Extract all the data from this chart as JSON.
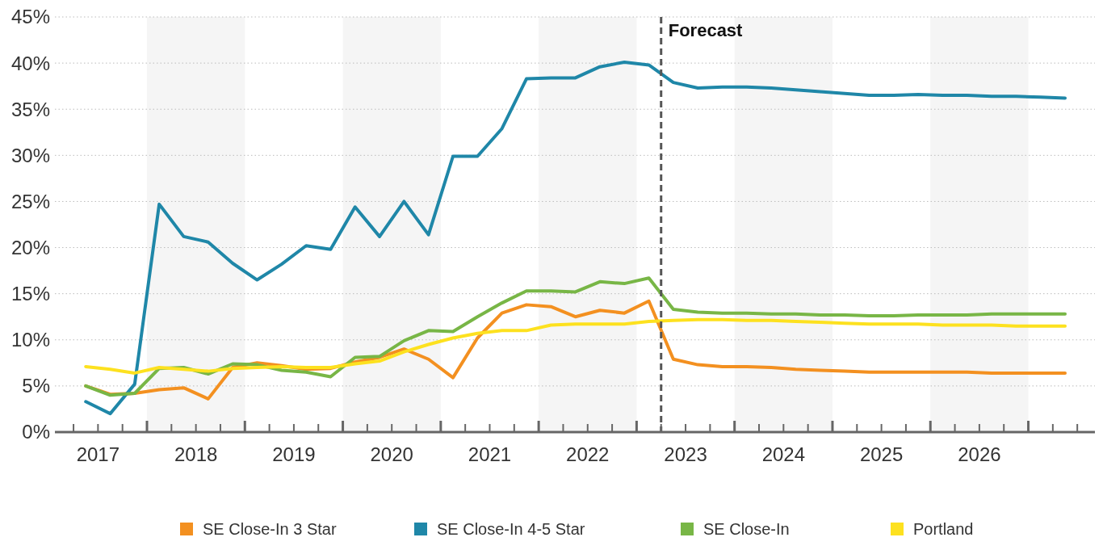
{
  "chart_data": {
    "type": "line",
    "x": [
      2017.375,
      2017.625,
      2017.875,
      2018.125,
      2018.375,
      2018.625,
      2018.875,
      2019.125,
      2019.375,
      2019.625,
      2019.875,
      2020.125,
      2020.375,
      2020.625,
      2020.875,
      2021.125,
      2021.375,
      2021.625,
      2021.875,
      2022.125,
      2022.375,
      2022.625,
      2022.875,
      2023.125,
      2023.375,
      2023.625,
      2023.875,
      2024.125,
      2024.375,
      2024.625,
      2024.875,
      2025.125,
      2025.375,
      2025.625,
      2025.875,
      2026.125,
      2026.375,
      2026.625,
      2026.875,
      2027.125,
      2027.375
    ],
    "series": [
      {
        "name": "SE Close-In 3 Star",
        "color": "#f39020",
        "values": [
          5.0,
          4.1,
          4.2,
          4.6,
          4.8,
          3.6,
          7.0,
          7.5,
          7.2,
          6.8,
          6.9,
          7.6,
          8.1,
          9.0,
          7.9,
          5.9,
          10.2,
          12.9,
          13.8,
          13.6,
          12.5,
          13.2,
          12.9,
          14.2,
          7.9,
          7.3,
          7.1,
          7.1,
          7.0,
          6.8,
          6.7,
          6.6,
          6.5,
          6.5,
          6.5,
          6.5,
          6.5,
          6.4,
          6.4,
          6.4,
          6.4
        ]
      },
      {
        "name": "SE Close-In 4-5 Star",
        "color": "#1f87a8",
        "values": [
          3.3,
          2.0,
          5.2,
          24.7,
          21.2,
          20.6,
          18.3,
          16.5,
          18.2,
          20.2,
          19.8,
          24.4,
          21.2,
          25.0,
          21.4,
          29.9,
          29.9,
          32.9,
          38.3,
          38.4,
          38.4,
          39.6,
          40.1,
          39.8,
          37.9,
          37.3,
          37.4,
          37.4,
          37.3,
          37.1,
          36.9,
          36.7,
          36.5,
          36.5,
          36.6,
          36.5,
          36.5,
          36.4,
          36.4,
          36.3,
          36.2
        ]
      },
      {
        "name": "SE Close-In",
        "color": "#78b646",
        "values": [
          5.0,
          4.0,
          4.2,
          6.9,
          7.0,
          6.3,
          7.4,
          7.3,
          6.7,
          6.5,
          6.0,
          8.1,
          8.2,
          9.9,
          11.0,
          10.9,
          12.5,
          14.0,
          15.3,
          15.3,
          15.2,
          16.3,
          16.1,
          16.7,
          13.3,
          13.0,
          12.9,
          12.9,
          12.8,
          12.8,
          12.7,
          12.7,
          12.6,
          12.6,
          12.7,
          12.7,
          12.7,
          12.8,
          12.8,
          12.8,
          12.8
        ]
      },
      {
        "name": "Portland",
        "color": "#fde11f",
        "values": [
          7.1,
          6.8,
          6.4,
          7.0,
          6.8,
          6.6,
          6.9,
          7.0,
          7.1,
          7.0,
          7.0,
          7.4,
          7.7,
          8.7,
          9.5,
          10.2,
          10.7,
          11.0,
          11.0,
          11.6,
          11.7,
          11.7,
          11.7,
          12.0,
          12.1,
          12.2,
          12.2,
          12.1,
          12.1,
          12.0,
          11.9,
          11.8,
          11.7,
          11.7,
          11.7,
          11.6,
          11.6,
          11.6,
          11.5,
          11.5,
          11.5
        ]
      }
    ],
    "xlim": [
      2017.06,
      2027.68
    ],
    "xticks": [
      {
        "value": 2017.25,
        "label": null
      },
      {
        "value": 2017.5,
        "label": "2017"
      },
      {
        "value": 2017.75,
        "label": null
      },
      {
        "value": 2018,
        "label": null
      },
      {
        "value": 2018.25,
        "label": null
      },
      {
        "value": 2018.5,
        "label": "2018"
      },
      {
        "value": 2018.75,
        "label": null
      },
      {
        "value": 2019,
        "label": null
      },
      {
        "value": 2019.25,
        "label": null
      },
      {
        "value": 2019.5,
        "label": "2019"
      },
      {
        "value": 2019.75,
        "label": null
      },
      {
        "value": 2020,
        "label": null
      },
      {
        "value": 2020.25,
        "label": null
      },
      {
        "value": 2020.5,
        "label": "2020"
      },
      {
        "value": 2020.75,
        "label": null
      },
      {
        "value": 2021,
        "label": null
      },
      {
        "value": 2021.25,
        "label": null
      },
      {
        "value": 2021.5,
        "label": "2021"
      },
      {
        "value": 2021.75,
        "label": null
      },
      {
        "value": 2022,
        "label": null
      },
      {
        "value": 2022.25,
        "label": null
      },
      {
        "value": 2022.5,
        "label": "2022"
      },
      {
        "value": 2022.75,
        "label": null
      },
      {
        "value": 2023,
        "label": null
      },
      {
        "value": 2023.25,
        "label": null
      },
      {
        "value": 2023.5,
        "label": "2023"
      },
      {
        "value": 2023.75,
        "label": null
      },
      {
        "value": 2024,
        "label": null
      },
      {
        "value": 2024.25,
        "label": null
      },
      {
        "value": 2024.5,
        "label": "2024"
      },
      {
        "value": 2024.75,
        "label": null
      },
      {
        "value": 2025,
        "label": null
      },
      {
        "value": 2025.25,
        "label": null
      },
      {
        "value": 2025.5,
        "label": "2025"
      },
      {
        "value": 2025.75,
        "label": null
      },
      {
        "value": 2026,
        "label": null
      },
      {
        "value": 2026.25,
        "label": null
      },
      {
        "value": 2026.5,
        "label": "2026"
      },
      {
        "value": 2026.75,
        "label": null
      },
      {
        "value": 2027,
        "label": null
      },
      {
        "value": 2027.25,
        "label": null
      },
      {
        "value": 2027.5,
        "label": null
      }
    ],
    "ylim": [
      0,
      45
    ],
    "yticks": [
      {
        "value": 0,
        "label": "0%"
      },
      {
        "value": 5,
        "label": "5%"
      },
      {
        "value": 10,
        "label": "10%"
      },
      {
        "value": 15,
        "label": "15%"
      },
      {
        "value": 20,
        "label": "20%"
      },
      {
        "value": 25,
        "label": "25%"
      },
      {
        "value": 30,
        "label": "30%"
      },
      {
        "value": 35,
        "label": "35%"
      },
      {
        "value": 40,
        "label": "40%"
      },
      {
        "value": 45,
        "label": "45%"
      }
    ],
    "grid": "y",
    "ref_lines": [
      {
        "axis": "x",
        "value": 2023.25,
        "label": "Forecast",
        "color": "#555555",
        "line_style": "dashed"
      }
    ],
    "bands": [
      {
        "axis": "x",
        "from": 2018,
        "to": 2019,
        "color": "#f5f5f5"
      },
      {
        "axis": "x",
        "from": 2020,
        "to": 2021,
        "color": "#f5f5f5"
      },
      {
        "axis": "x",
        "from": 2022,
        "to": 2023,
        "color": "#f5f5f5"
      },
      {
        "axis": "x",
        "from": 2024,
        "to": 2025,
        "color": "#f5f5f5"
      },
      {
        "axis": "x",
        "from": 2026,
        "to": 2027,
        "color": "#f5f5f5"
      }
    ],
    "legend": "bottom",
    "marker": "none",
    "line_style": "solid"
  }
}
